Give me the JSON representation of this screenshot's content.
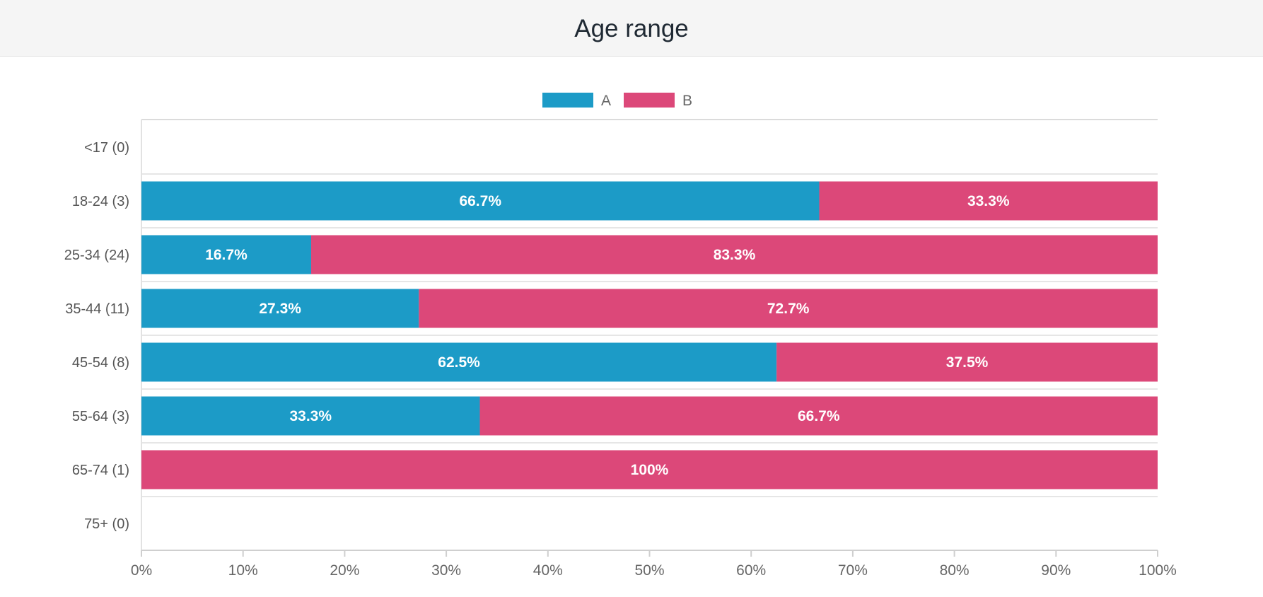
{
  "header": {
    "title": "Age range"
  },
  "chart_data": {
    "type": "bar",
    "orientation": "horizontal",
    "stacked": true,
    "title": "Age range",
    "categories": [
      "<17 (0)",
      "18-24 (3)",
      "25-34 (24)",
      "35-44 (11)",
      "45-54 (8)",
      "55-64 (3)",
      "65-74 (1)",
      "75+ (0)"
    ],
    "series": [
      {
        "name": "A",
        "color": "#1c9bc7",
        "values": [
          0,
          66.7,
          16.7,
          27.3,
          62.5,
          33.3,
          0,
          0
        ],
        "labels": [
          "",
          "66.7%",
          "16.7%",
          "27.3%",
          "62.5%",
          "33.3%",
          "",
          ""
        ]
      },
      {
        "name": "B",
        "color": "#dc4879",
        "values": [
          0,
          33.3,
          83.3,
          72.7,
          37.5,
          66.7,
          100,
          0
        ],
        "labels": [
          "",
          "33.3%",
          "83.3%",
          "72.7%",
          "37.5%",
          "66.7%",
          "100%",
          ""
        ]
      }
    ],
    "xlim": [
      0,
      100
    ],
    "xticks": [
      "0%",
      "10%",
      "20%",
      "30%",
      "40%",
      "50%",
      "60%",
      "70%",
      "80%",
      "90%",
      "100%"
    ],
    "legend_position": "top-center",
    "grid": true
  }
}
